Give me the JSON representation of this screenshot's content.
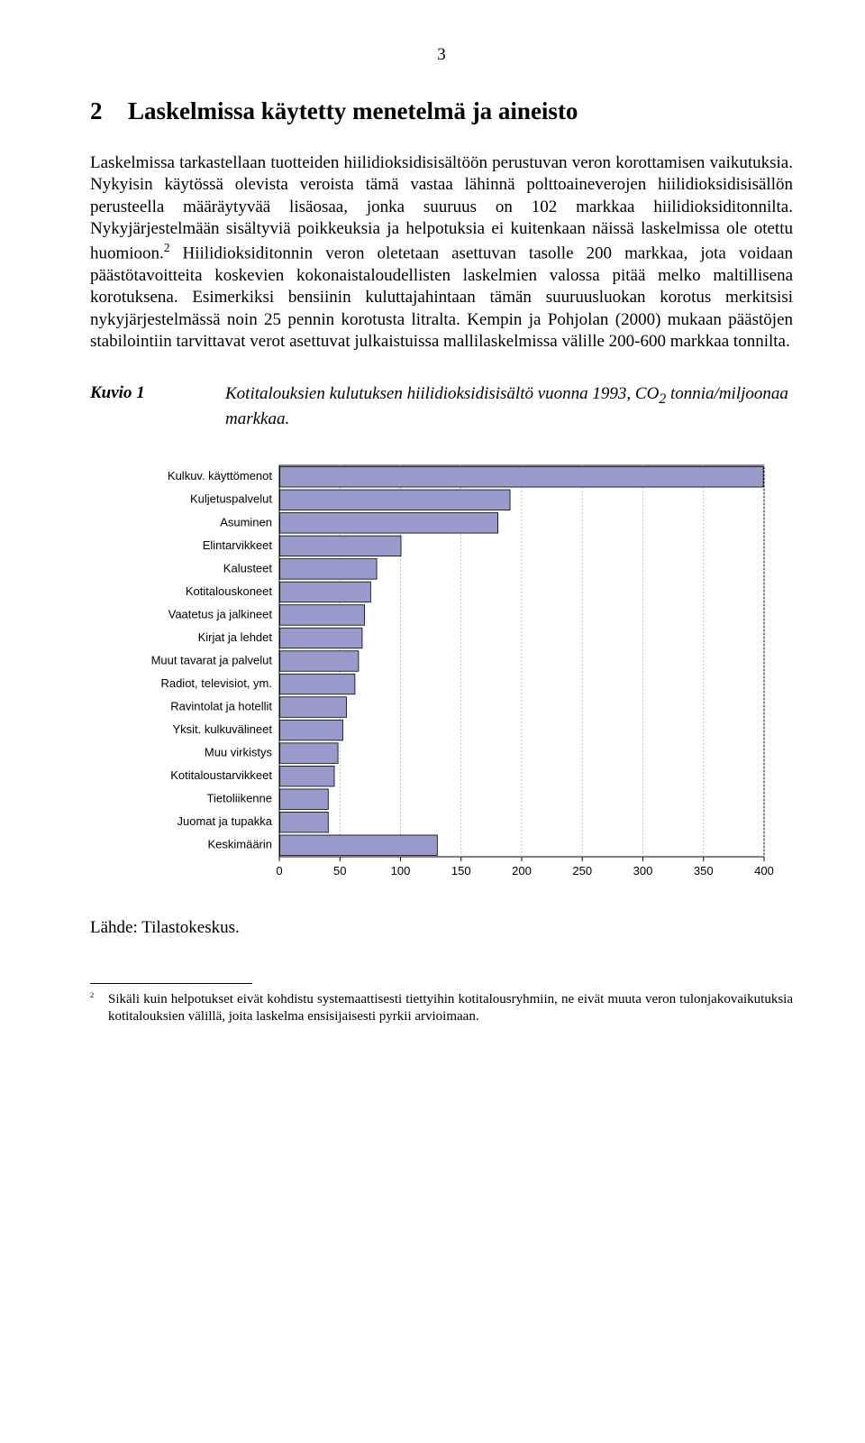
{
  "page_number": "3",
  "heading_num": "2",
  "heading_text": "Laskelmissa käytetty menetelmä ja aineisto",
  "body_p1": "Laskelmissa tarkastellaan tuotteiden hiilidioksidisisältöön perustuvan veron korottamisen vaikutuksia. Nykyisin käytössä olevista veroista tämä vastaa lähinnä polttoaineverojen hiilidioksidisisällön perusteella määräytyvää lisäosaa, jonka suuruus on 102 markkaa hiilidioksiditonnilta. Nykyjärjestelmään sisältyviä poikkeuksia ja helpotuksia ei kuitenkaan näissä laskelmissa ole otettu huomioon.",
  "body_sup": "2",
  "body_p2": " Hiilidioksiditonnin veron oletetaan asettuvan tasolle 200 markkaa, jota voidaan päästötavoitteita koskevien kokonaistaloudellisten laskelmien valossa pitää melko maltillisena korotuksena. Esimerkiksi bensiinin kuluttajahintaan tämän suuruusluokan korotus merkitsisi nykyjärjestelmässä noin 25 pennin korotusta litralta. Kempin ja Pohjolan (2000) mukaan päästöjen stabilointiin tarvittavat verot asettuvat julkaistuissa mallilaskelmissa välille 200-600 markkaa tonnilta.",
  "fig_label": "Kuvio 1",
  "fig_text_1": "Kotitalouksien kulutuksen hiilidioksidisisältö vuonna 1993, CO",
  "fig_sub": "2",
  "fig_text_2": " tonnia/miljoonaa markkaa.",
  "chart": {
    "type": "bar",
    "background_color": "#ffffff",
    "border_color": "#000000",
    "grid_color": "#c0c0c0",
    "bar_fill": "#9999cc",
    "bar_stroke": "#000000",
    "label_font_family": "Arial, sans-serif",
    "label_fontsize": 13,
    "tick_fontsize": 13,
    "x_min": 0,
    "x_max": 400,
    "x_tick_step": 50,
    "bar_gap": 3,
    "categories": [
      {
        "label": "Kulkuv. käyttömenot",
        "value": 399
      },
      {
        "label": "Kuljetuspalvelut",
        "value": 190
      },
      {
        "label": "Asuminen",
        "value": 180
      },
      {
        "label": "Elintarvikkeet",
        "value": 100
      },
      {
        "label": "Kalusteet",
        "value": 80
      },
      {
        "label": "Kotitalouskoneet",
        "value": 75
      },
      {
        "label": "Vaatetus ja jalkineet",
        "value": 70
      },
      {
        "label": "Kirjat ja lehdet",
        "value": 68
      },
      {
        "label": "Muut tavarat ja palvelut",
        "value": 65
      },
      {
        "label": "Radiot, televisiot, ym.",
        "value": 62
      },
      {
        "label": "Ravintolat ja hotellit",
        "value": 55
      },
      {
        "label": "Yksit. kulkuvälineet",
        "value": 52
      },
      {
        "label": "Muu virkistys",
        "value": 48
      },
      {
        "label": "Kotitaloustarvikkeet",
        "value": 45
      },
      {
        "label": "Tietoliikenne",
        "value": 40
      },
      {
        "label": "Juomat ja tupakka",
        "value": 40
      },
      {
        "label": "Keskimäärin",
        "value": 130
      }
    ]
  },
  "source": "Lähde: Tilastokeskus.",
  "footnote_num": "2",
  "footnote_text": "Sikäli kuin helpotukset eivät kohdistu systemaattisesti tiettyihin kotitalousryhmiin, ne eivät muuta veron tulonjakovaikutuksia kotitalouksien välillä, joita laskelma ensisijaisesti pyrkii arvioimaan."
}
